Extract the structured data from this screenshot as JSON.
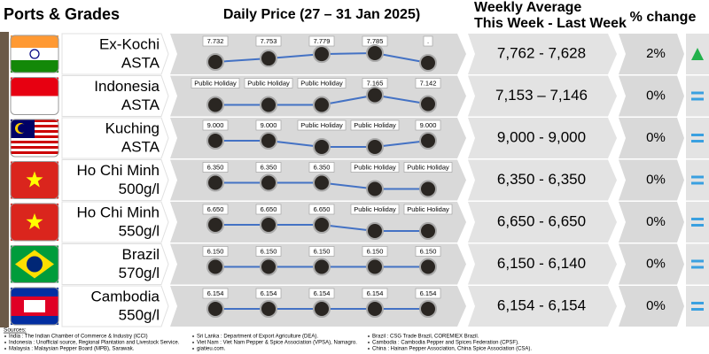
{
  "header": {
    "ports": "Ports & Grades",
    "daily": "Daily Price (27 – 31 Jan 2025)",
    "weekly_line1": "Weekly Average",
    "weekly_line2": "This Week - Last Week",
    "change": "% change"
  },
  "rows": [
    {
      "port": "Ex-Kochi",
      "grade": "ASTA",
      "daily": [
        {
          "value": 7732,
          "label": "7.732"
        },
        {
          "value": 7753,
          "label": "7.753"
        },
        {
          "value": 7779,
          "label": "7.779"
        },
        {
          "value": 7785,
          "label": "7.785"
        },
        "."
      ],
      "weekly": "7,762 - 7,628",
      "change": "2%",
      "trend": "up"
    },
    {
      "port": "Indonesia",
      "grade": "ASTA",
      "daily": [
        "Public Holiday",
        "Public Holiday",
        "Public Holiday",
        {
          "value": 7165,
          "label": "7.165"
        },
        {
          "value": 7142,
          "label": "7.142"
        }
      ],
      "weekly": "7,153 – 7,146",
      "change": "0%",
      "trend": "equal"
    },
    {
      "port": "Kuching",
      "grade": "ASTA",
      "daily": [
        {
          "value": 9000,
          "label": "9.000"
        },
        {
          "value": 9000,
          "label": "9.000"
        },
        "Public Holiday",
        "Public Holiday",
        {
          "value": 9000,
          "label": "9.000"
        }
      ],
      "weekly": "9,000 - 9,000",
      "change": "0%",
      "trend": "equal"
    },
    {
      "port": "Ho Chi Minh",
      "grade": "500g/l",
      "daily": [
        {
          "value": 6350,
          "label": "6.350"
        },
        {
          "value": 6350,
          "label": "6.350"
        },
        {
          "value": 6350,
          "label": "6.350"
        },
        "Public Holiday",
        "Public Holiday"
      ],
      "weekly": "6,350 - 6,350",
      "change": "0%",
      "trend": "equal"
    },
    {
      "port": "Ho Chi Minh",
      "grade": "550g/l",
      "daily": [
        {
          "value": 6650,
          "label": "6.650"
        },
        {
          "value": 6650,
          "label": "6.650"
        },
        {
          "value": 6650,
          "label": "6.650"
        },
        "Public Holiday",
        "Public Holiday"
      ],
      "weekly": "6,650 - 6,650",
      "change": "0%",
      "trend": "equal"
    },
    {
      "port": "Brazil",
      "grade": "570g/l",
      "daily": [
        {
          "value": 6150,
          "label": "6.150"
        },
        {
          "value": 6150,
          "label": "6.150"
        },
        {
          "value": 6150,
          "label": "6.150"
        },
        {
          "value": 6150,
          "label": "6.150"
        },
        {
          "value": 6150,
          "label": "6.150"
        }
      ],
      "weekly": "6,150 - 6,140",
      "change": "0%",
      "trend": "equal"
    },
    {
      "port": "Cambodia",
      "grade": "550g/l",
      "daily": [
        {
          "value": 6154,
          "label": "6.154"
        },
        {
          "value": 6154,
          "label": "6.154"
        },
        {
          "value": 6154,
          "label": "6.154"
        },
        {
          "value": 6154,
          "label": "6.154"
        },
        {
          "value": 6154,
          "label": "6.154"
        }
      ],
      "weekly": "6,154 - 6,154",
      "change": "0%",
      "trend": "equal"
    }
  ],
  "sources": {
    "title": "Sources:",
    "columns": [
      [
        "India : The Indian Chamber of Commerce & Industry (ICCI)",
        "Indonesia : Unofficial source, Regional Plantation and Livestock Service.",
        "Malaysia : Malaysian Pepper Board (MPB), Sarawak."
      ],
      [
        "Sri Lanka : Department of Export Agriculture (DEA).",
        "Viet Nam : Viet Nam Pepper & Spice Association (VPSA), Namagro.",
        "giatieu.com."
      ],
      [
        "Brazil : CSG Trade Brazil, COREMIEX Brazil.",
        "Cambodia : Cambodia Pepper and Spices Federation (CPSF).",
        "China : Hainan Pepper Association, China Spice Association (CSA)."
      ]
    ]
  }
}
